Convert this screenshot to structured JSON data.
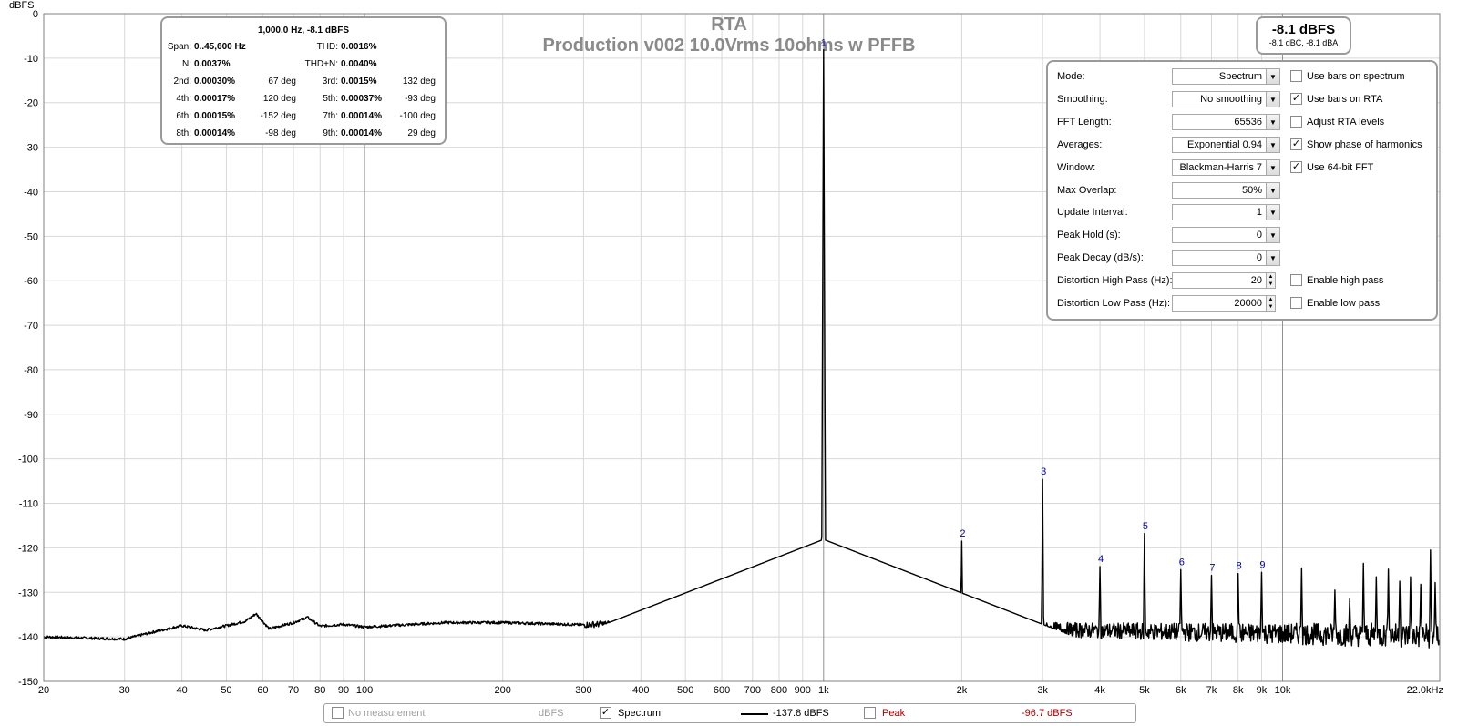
{
  "chart_data": {
    "type": "line",
    "title": "RTA",
    "subtitle": "Production v002 10.0Vrms 10ohms w PFFB",
    "ylabel": "dBFS",
    "xlabel": "",
    "x_scale": "log",
    "xlim": [
      20,
      22000
    ],
    "ylim": [
      -150,
      0
    ],
    "grid": true,
    "y_ticks": [
      0,
      -10,
      -20,
      -30,
      -40,
      -50,
      -60,
      -70,
      -80,
      -90,
      -100,
      -110,
      -120,
      -130,
      -140,
      -150
    ],
    "x_ticks": [
      {
        "v": 20,
        "label": "20"
      },
      {
        "v": 30,
        "label": "30"
      },
      {
        "v": 40,
        "label": "40"
      },
      {
        "v": 50,
        "label": "50"
      },
      {
        "v": 60,
        "label": "60"
      },
      {
        "v": 70,
        "label": "70"
      },
      {
        "v": 80,
        "label": "80"
      },
      {
        "v": 90,
        "label": "90"
      },
      {
        "v": 100,
        "label": "100"
      },
      {
        "v": 200,
        "label": "200"
      },
      {
        "v": 300,
        "label": "300"
      },
      {
        "v": 400,
        "label": "400"
      },
      {
        "v": 500,
        "label": "500"
      },
      {
        "v": 600,
        "label": "600"
      },
      {
        "v": 700,
        "label": "700"
      },
      {
        "v": 800,
        "label": "800"
      },
      {
        "v": 900,
        "label": "900"
      },
      {
        "v": 1000,
        "label": "1k"
      },
      {
        "v": 2000,
        "label": "2k"
      },
      {
        "v": 3000,
        "label": "3k"
      },
      {
        "v": 4000,
        "label": "4k"
      },
      {
        "v": 5000,
        "label": "5k"
      },
      {
        "v": 6000,
        "label": "6k"
      },
      {
        "v": 7000,
        "label": "7k"
      },
      {
        "v": 8000,
        "label": "8k"
      },
      {
        "v": 9000,
        "label": "9k"
      },
      {
        "v": 10000,
        "label": "10k"
      },
      {
        "v": 22000,
        "label": "22.0kHz"
      }
    ],
    "series": [
      {
        "name": "Spectrum",
        "color": "#000000",
        "noise_floor": [
          [
            20,
            -140
          ],
          [
            25,
            -140.3
          ],
          [
            30,
            -140.5
          ],
          [
            35,
            -138.8
          ],
          [
            40,
            -137.5
          ],
          [
            45,
            -138.5
          ],
          [
            50,
            -137.5
          ],
          [
            55,
            -136.5
          ],
          [
            58,
            -134.8
          ],
          [
            62,
            -138.2
          ],
          [
            70,
            -136.8
          ],
          [
            75,
            -135.6
          ],
          [
            80,
            -137.6
          ],
          [
            90,
            -137.2
          ],
          [
            100,
            -137.8
          ],
          [
            150,
            -136.8
          ],
          [
            200,
            -136.8
          ],
          [
            300,
            -137.3
          ],
          [
            500,
            -136.3
          ],
          [
            700,
            -135.8
          ],
          [
            900,
            -134.3
          ],
          [
            1100,
            -136.5
          ],
          [
            1500,
            -137.3
          ],
          [
            2000,
            -137.8
          ],
          [
            3000,
            -138.3
          ],
          [
            5000,
            -138.8
          ],
          [
            10000,
            -139.3
          ],
          [
            22000,
            -139.8
          ]
        ],
        "carrier": {
          "x": 1000,
          "y": -8.1
        },
        "harmonics": [
          {
            "n": 2,
            "x": 2000,
            "y": -118.5
          },
          {
            "n": 3,
            "x": 3000,
            "y": -104.6
          },
          {
            "n": 4,
            "x": 4000,
            "y": -124.2
          },
          {
            "n": 5,
            "x": 5000,
            "y": -116.8
          },
          {
            "n": 6,
            "x": 6000,
            "y": -124.9
          },
          {
            "n": 7,
            "x": 7000,
            "y": -126.2
          },
          {
            "n": 8,
            "x": 8000,
            "y": -125.8
          },
          {
            "n": 9,
            "x": 9000,
            "y": -125.5
          }
        ],
        "spurs": [
          {
            "x": 11000,
            "y": -124.5
          },
          {
            "x": 13000,
            "y": -129.5
          },
          {
            "x": 14000,
            "y": -131.5
          },
          {
            "x": 15000,
            "y": -123.5
          },
          {
            "x": 16000,
            "y": -126.5
          },
          {
            "x": 17000,
            "y": -124.8
          },
          {
            "x": 18000,
            "y": -127.5
          },
          {
            "x": 19000,
            "y": -126.5
          },
          {
            "x": 20000,
            "y": -128.2
          },
          {
            "x": 21000,
            "y": -120.5
          },
          {
            "x": 21500,
            "y": -127.8
          }
        ]
      }
    ]
  },
  "distortion": {
    "title": "1,000.0 Hz, -8.1 dBFS",
    "span_label": "Span:",
    "span_value": "0..45,600 Hz",
    "thd_label": "THD:",
    "thd_value": "0.0016%",
    "n_label": "N:",
    "n_value": "0.0037%",
    "thdn_label": "THD+N:",
    "thdn_value": "0.0040%",
    "harmonics": [
      {
        "label": "2nd:",
        "value": "0.00030%",
        "phase": "67 deg"
      },
      {
        "label": "3rd:",
        "value": "0.0015%",
        "phase": "132 deg"
      },
      {
        "label": "4th:",
        "value": "0.00017%",
        "phase": "120 deg"
      },
      {
        "label": "5th:",
        "value": "0.00037%",
        "phase": "-93 deg"
      },
      {
        "label": "6th:",
        "value": "0.00015%",
        "phase": "-152 deg"
      },
      {
        "label": "7th:",
        "value": "0.00014%",
        "phase": "-100 deg"
      },
      {
        "label": "8th:",
        "value": "0.00014%",
        "phase": "-98 deg"
      },
      {
        "label": "9th:",
        "value": "0.00014%",
        "phase": "29 deg"
      }
    ]
  },
  "level": {
    "main": "-8.1 dBFS",
    "sub": "-8.1 dBC, -8.1 dBA"
  },
  "controls": {
    "mode": {
      "label": "Mode:",
      "value": "Spectrum"
    },
    "smoothing": {
      "label": "Smoothing:",
      "value": "No  smoothing"
    },
    "fft_length": {
      "label": "FFT Length:",
      "value": "65536"
    },
    "averages": {
      "label": "Averages:",
      "value": "Exponential 0.94"
    },
    "window": {
      "label": "Window:",
      "value": "Blackman-Harris 7"
    },
    "max_overlap": {
      "label": "Max Overlap:",
      "value": "50%"
    },
    "update_interval": {
      "label": "Update Interval:",
      "value": "1"
    },
    "peak_hold": {
      "label": "Peak Hold (s):",
      "value": "0"
    },
    "peak_decay": {
      "label": "Peak Decay (dB/s):",
      "value": "0"
    },
    "dist_high_pass": {
      "label": "Distortion High Pass (Hz):",
      "value": "20"
    },
    "dist_low_pass": {
      "label": "Distortion Low Pass (Hz):",
      "value": "20000"
    },
    "checkboxes": [
      {
        "label": "Use bars on spectrum",
        "checked": false
      },
      {
        "label": "Use bars on RTA",
        "checked": true
      },
      {
        "label": "Adjust RTA levels",
        "checked": false
      },
      {
        "label": "Show phase of harmonics",
        "checked": true
      },
      {
        "label": "Use 64-bit FFT",
        "checked": true
      }
    ],
    "enable_high_pass": {
      "label": "Enable high pass",
      "checked": false
    },
    "enable_low_pass": {
      "label": "Enable low pass",
      "checked": false
    }
  },
  "legend": {
    "no_measurement": "No measurement",
    "no_measurement_unit": "dBFS",
    "spectrum": "Spectrum",
    "spectrum_value": "-137.8 dBFS",
    "peak": "Peak",
    "peak_value": "-96.7 dBFS",
    "peak_color": "#b00000"
  }
}
